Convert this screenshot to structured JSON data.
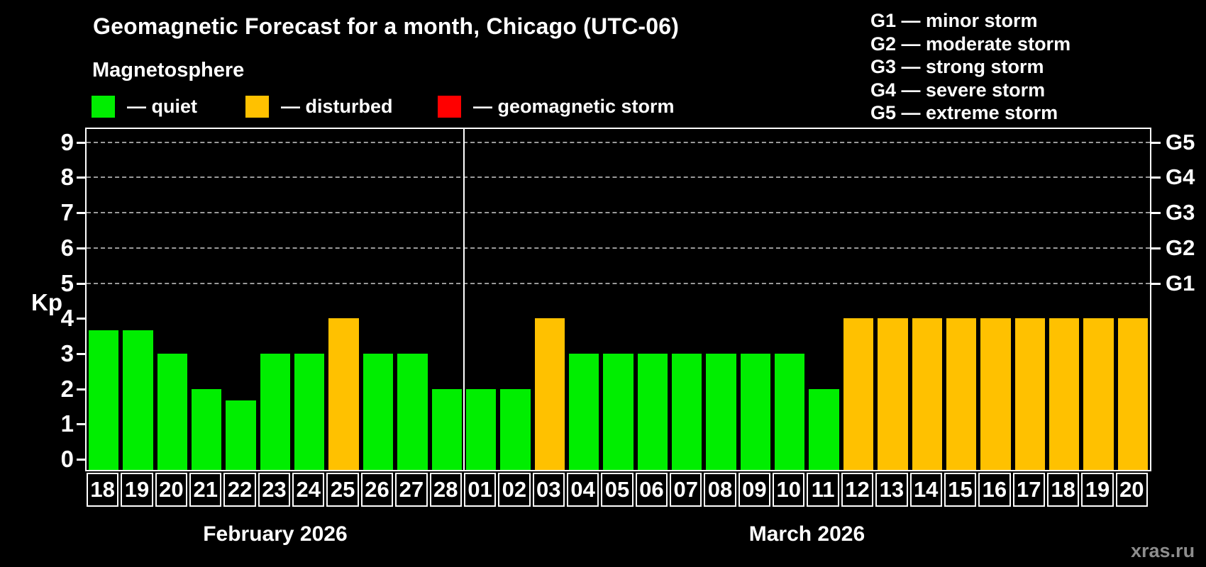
{
  "title": "Geomagnetic Forecast for a month, Chicago (UTC-06)",
  "legend": {
    "title": "Magnetosphere",
    "items": [
      {
        "key": "quiet",
        "label": "— quiet",
        "color": "#00ee00"
      },
      {
        "key": "disturbed",
        "label": "— disturbed",
        "color": "#ffc100"
      },
      {
        "key": "storm",
        "label": "— geomagnetic storm",
        "color": "#ff0000"
      }
    ]
  },
  "g_legend": {
    "items": [
      "G1 — minor storm",
      "G2 — moderate storm",
      "G3 — strong storm",
      "G4 — severe storm",
      "G5 — extreme storm"
    ]
  },
  "watermark": "xras.ru",
  "colors": {
    "quiet": "#00ee00",
    "disturbed": "#ffc100",
    "storm": "#ff0000",
    "grid": "#9a9a9a",
    "axis": "#ffffff",
    "background": "#000000"
  },
  "chart_data": {
    "type": "bar",
    "title": "Geomagnetic Forecast for a month, Chicago (UTC-06)",
    "ylabel": "Kp",
    "ylim": [
      0,
      9.4
    ],
    "yticks": [
      0,
      1,
      2,
      3,
      4,
      5,
      6,
      7,
      8,
      9
    ],
    "grid": "dashed horizontal at Kp 5-9 only",
    "gridlines_at": [
      5,
      6,
      7,
      8,
      9
    ],
    "right_axis_labels": [
      {
        "kp": 5,
        "label": "G1"
      },
      {
        "kp": 6,
        "label": "G2"
      },
      {
        "kp": 7,
        "label": "G3"
      },
      {
        "kp": 8,
        "label": "G4"
      },
      {
        "kp": 9,
        "label": "G5"
      }
    ],
    "legend_position": "top",
    "months": [
      {
        "label": "February 2026",
        "days": [
          {
            "day": "18",
            "kp": 3.67,
            "status": "quiet"
          },
          {
            "day": "19",
            "kp": 3.67,
            "status": "quiet"
          },
          {
            "day": "20",
            "kp": 3,
            "status": "quiet"
          },
          {
            "day": "21",
            "kp": 2,
            "status": "quiet"
          },
          {
            "day": "22",
            "kp": 1.67,
            "status": "quiet"
          },
          {
            "day": "23",
            "kp": 3,
            "status": "quiet"
          },
          {
            "day": "24",
            "kp": 3,
            "status": "quiet"
          },
          {
            "day": "25",
            "kp": 4,
            "status": "disturbed"
          },
          {
            "day": "26",
            "kp": 3,
            "status": "quiet"
          },
          {
            "day": "27",
            "kp": 3,
            "status": "quiet"
          },
          {
            "day": "28",
            "kp": 2,
            "status": "quiet"
          }
        ]
      },
      {
        "label": "March 2026",
        "days": [
          {
            "day": "01",
            "kp": 2,
            "status": "quiet"
          },
          {
            "day": "02",
            "kp": 2,
            "status": "quiet"
          },
          {
            "day": "03",
            "kp": 4,
            "status": "disturbed"
          },
          {
            "day": "04",
            "kp": 3,
            "status": "quiet"
          },
          {
            "day": "05",
            "kp": 3,
            "status": "quiet"
          },
          {
            "day": "06",
            "kp": 3,
            "status": "quiet"
          },
          {
            "day": "07",
            "kp": 3,
            "status": "quiet"
          },
          {
            "day": "08",
            "kp": 3,
            "status": "quiet"
          },
          {
            "day": "09",
            "kp": 3,
            "status": "quiet"
          },
          {
            "day": "10",
            "kp": 3,
            "status": "quiet"
          },
          {
            "day": "11",
            "kp": 2,
            "status": "quiet"
          },
          {
            "day": "12",
            "kp": 4,
            "status": "disturbed"
          },
          {
            "day": "13",
            "kp": 4,
            "status": "disturbed"
          },
          {
            "day": "14",
            "kp": 4,
            "status": "disturbed"
          },
          {
            "day": "15",
            "kp": 4,
            "status": "disturbed"
          },
          {
            "day": "16",
            "kp": 4,
            "status": "disturbed"
          },
          {
            "day": "17",
            "kp": 4,
            "status": "disturbed"
          },
          {
            "day": "18",
            "kp": 4,
            "status": "disturbed"
          },
          {
            "day": "19",
            "kp": 4,
            "status": "disturbed"
          },
          {
            "day": "20",
            "kp": 4,
            "status": "disturbed"
          }
        ]
      }
    ]
  }
}
